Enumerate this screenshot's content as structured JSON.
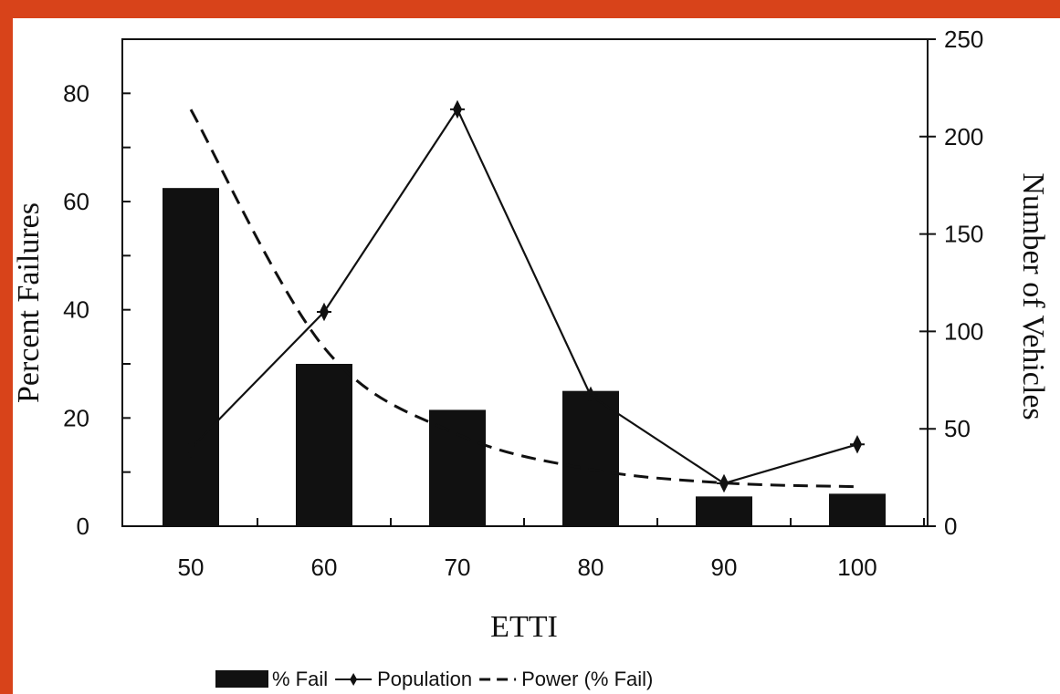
{
  "chart_data": {
    "type": "bar",
    "categories": [
      "50",
      "60",
      "70",
      "80",
      "90",
      "100"
    ],
    "xlabel": "ETTI",
    "ylabel": "Percent Failures",
    "y2label": "Number of Vehicles",
    "ylim": [
      0,
      90
    ],
    "y2lim": [
      0,
      250
    ],
    "yticks": [
      0,
      20,
      40,
      60,
      80
    ],
    "y2ticks": [
      0,
      50,
      100,
      150,
      200,
      250
    ],
    "grid": false,
    "legend": "bottom",
    "series": [
      {
        "name": "% Fail",
        "type": "bar",
        "axis": "left",
        "values": [
          62.5,
          30,
          21.5,
          25,
          5.5,
          6
        ]
      },
      {
        "name": "Population",
        "type": "line",
        "axis": "right",
        "values": [
          40,
          110,
          214,
          67,
          22,
          42
        ]
      },
      {
        "name": "Power (% Fail)",
        "type": "line",
        "style": "dashed",
        "axis": "left",
        "values": [
          77,
          33,
          17,
          10.5,
          8,
          7.3
        ]
      }
    ],
    "colors": {
      "bar": "#111111",
      "line": "#111111",
      "background": "#ffffff",
      "border": "#d8431a"
    }
  }
}
